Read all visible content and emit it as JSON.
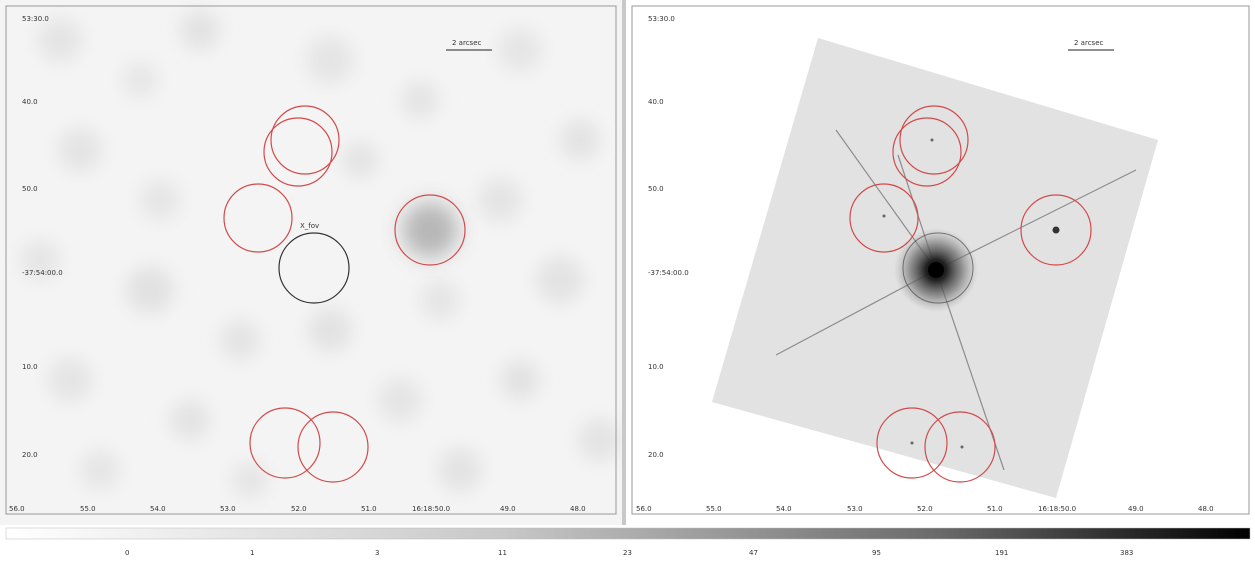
{
  "left_panel": {
    "dec_labels": [
      "53:30.0",
      "40.0",
      "50.0",
      "-37:54:00.0",
      "10.0",
      "20.0"
    ],
    "ra_labels": [
      "56.0",
      "55.0",
      "54.0",
      "53.0",
      "52.0",
      "51.0",
      "16:18:50.0",
      "49.0",
      "48.0"
    ],
    "scalebar_label": "2 arcsec",
    "source_label": "X_fov"
  },
  "right_panel": {
    "dec_labels": [
      "53:30.0",
      "40.0",
      "50.0",
      "-37:54:00.0",
      "10.0",
      "20.0"
    ],
    "ra_labels": [
      "56.0",
      "55.0",
      "54.0",
      "53.0",
      "52.0",
      "51.0",
      "16:18:50.0",
      "49.0",
      "48.0"
    ],
    "scalebar_label": "2 arcsec"
  },
  "colorbar": {
    "tick_labels": [
      "0",
      "1",
      "3",
      "11",
      "23",
      "47",
      "95",
      "191",
      "383"
    ]
  },
  "colors": {
    "region_red": "#d24a4a",
    "region_dark": "#333333",
    "background": "#ffffff"
  }
}
